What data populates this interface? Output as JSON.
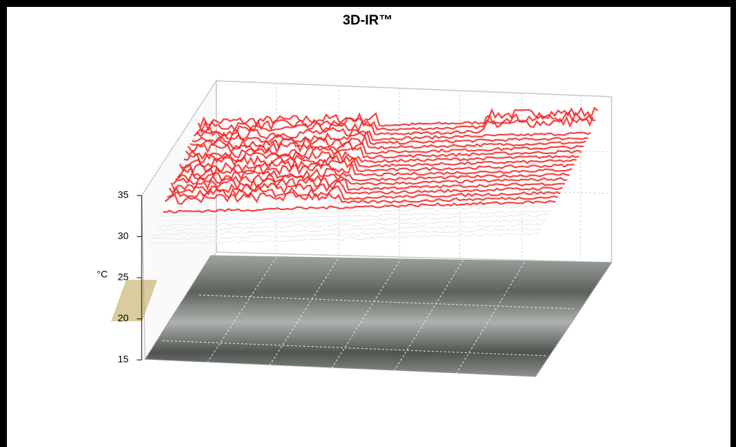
{
  "chart_data": {
    "type": "surface3d",
    "title": "3D-IR™",
    "zlabel": "°C",
    "zlim": [
      15,
      35
    ],
    "zticks": [
      15,
      20,
      25,
      30,
      35
    ],
    "color": "#ff0000"
  }
}
